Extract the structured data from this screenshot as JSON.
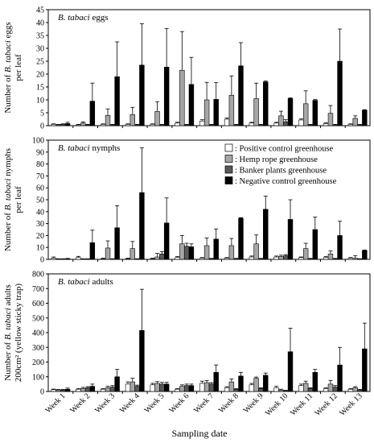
{
  "figure": {
    "xlabel": "Sampling date"
  },
  "legend": {
    "items": [
      {
        "label": ": Positive control greenhouse",
        "color": "#ffffff"
      },
      {
        "label": ": Hemp rope greenhouse",
        "color": "#a6a6a6"
      },
      {
        "label": ": Banker plants greenhouse",
        "color": "#595959"
      },
      {
        "label": ": Negative control greenhouse",
        "color": "#000000"
      }
    ]
  },
  "chart_data": [
    {
      "type": "bar",
      "title_italic": "B. tabaci",
      "title_rest": " eggs",
      "ylabel_line1_pre": "Number of ",
      "ylabel_line1_italic": "B. tabaci",
      "ylabel_line1_post": " eggs",
      "ylabel_line2": "per leaf",
      "ylim": [
        0,
        45
      ],
      "yticks": [
        0,
        5,
        10,
        15,
        20,
        25,
        30,
        35,
        40,
        45
      ],
      "categories": [
        "Week 1",
        "Week 2",
        "Week 3",
        "Week 4",
        "Week 5",
        "Week 6",
        "Week 7",
        "Week 8",
        "Week 9",
        "Week 10",
        "Week 11",
        "Week 12",
        "Week 13"
      ],
      "series": [
        {
          "name": "Positive control greenhouse",
          "color": "#ffffff",
          "values": [
            0.5,
            0.3,
            0.5,
            0.5,
            0.5,
            1.0,
            1.8,
            2.5,
            1.0,
            1.0,
            2.2,
            0.8,
            0.5
          ],
          "errors": [
            0.2,
            0.2,
            0.2,
            0.2,
            0.2,
            0.3,
            0.5,
            0.5,
            0.3,
            0.3,
            0.4,
            0.3,
            0.2
          ]
        },
        {
          "name": "Hemp rope greenhouse",
          "color": "#a6a6a6",
          "values": [
            0.3,
            1.0,
            4.0,
            4.3,
            5.5,
            21.5,
            10.0,
            11.8,
            10.5,
            3.8,
            8.5,
            4.8,
            2.8
          ],
          "errors": [
            0.2,
            0.5,
            2.5,
            2.8,
            3.8,
            15.0,
            6.8,
            7.5,
            6.0,
            1.8,
            5.0,
            3.0,
            1.0
          ]
        },
        {
          "name": "Banker plants greenhouse",
          "color": "#595959",
          "values": [
            0.5,
            0.3,
            0.3,
            0.3,
            0.3,
            0.3,
            0.3,
            0.3,
            0.3,
            1.5,
            0.3,
            0.3,
            0.3
          ],
          "errors": [
            0.2,
            0.2,
            0.2,
            0.2,
            0.2,
            0.2,
            0.2,
            0.2,
            0.2,
            0.8,
            0.2,
            0.2,
            0.2
          ]
        },
        {
          "name": "Negative control greenhouse",
          "color": "#000000",
          "values": [
            0.8,
            9.5,
            19.0,
            23.5,
            22.7,
            16.0,
            10.2,
            23.2,
            17.0,
            10.5,
            9.8,
            25.0,
            6.0
          ],
          "errors": [
            0.5,
            7.0,
            13.5,
            16.0,
            15.0,
            10.5,
            6.5,
            9.0,
            0.3,
            0.3,
            0.3,
            12.5,
            0.2
          ]
        }
      ]
    },
    {
      "type": "bar",
      "title_italic": "B. tabaci",
      "title_rest": " nymphs",
      "ylabel_line1_pre": "Number of ",
      "ylabel_line1_italic": "B. tabaci",
      "ylabel_line1_post": " nymphs",
      "ylabel_line2": "per leaf",
      "ylim": [
        0,
        100
      ],
      "yticks": [
        0,
        10,
        20,
        30,
        40,
        50,
        60,
        70,
        80,
        90,
        100
      ],
      "categories": [
        "Week 1",
        "Week 2",
        "Week 3",
        "Week 4",
        "Week 5",
        "Week 6",
        "Week 7",
        "Week 8",
        "Week 9",
        "Week 10",
        "Week 11",
        "Week 12",
        "Week 13"
      ],
      "series": [
        {
          "name": "Positive control greenhouse",
          "color": "#ffffff",
          "values": [
            1.0,
            1.5,
            0.5,
            0.5,
            0.5,
            1.5,
            1.0,
            1.0,
            2.0,
            2.0,
            1.5,
            1.5,
            1.0
          ],
          "errors": [
            1.0,
            1.0,
            0.5,
            0.5,
            0.5,
            0.8,
            0.5,
            0.5,
            0.8,
            0.8,
            0.5,
            0.8,
            0.5
          ]
        },
        {
          "name": "Hemp rope greenhouse",
          "color": "#a6a6a6",
          "values": [
            0.3,
            0.3,
            9.5,
            9.0,
            2.0,
            13.0,
            11.5,
            11.5,
            13.0,
            2.5,
            9.0,
            4.5,
            1.0
          ],
          "errors": [
            0.2,
            0.2,
            6.0,
            6.0,
            3.0,
            7.0,
            6.5,
            6.0,
            7.5,
            1.0,
            4.5,
            2.5,
            2.0
          ]
        },
        {
          "name": "Banker plants greenhouse",
          "color": "#595959",
          "values": [
            0.3,
            0.3,
            0.3,
            0.3,
            4.5,
            11.0,
            0.5,
            0.5,
            0.5,
            3.0,
            0.5,
            0.5,
            0.3
          ],
          "errors": [
            0.2,
            0.2,
            0.2,
            0.2,
            2.0,
            2.5,
            0.3,
            0.3,
            0.3,
            1.0,
            0.3,
            0.3,
            0.2
          ]
        },
        {
          "name": "Negative control greenhouse",
          "color": "#000000",
          "values": [
            0.5,
            14.0,
            26.5,
            56.0,
            30.5,
            10.5,
            17.0,
            34.5,
            42.0,
            33.5,
            25.0,
            20.0,
            7.5
          ],
          "errors": [
            0.3,
            10.5,
            18.5,
            37.5,
            21.0,
            2.5,
            8.5,
            0.5,
            11.0,
            16.5,
            10.5,
            12.0,
            0.3
          ]
        }
      ]
    },
    {
      "type": "bar",
      "title_italic": "B. tabaci",
      "title_rest": " adults",
      "ylabel_line1_pre": "Number of ",
      "ylabel_line1_italic": "B. tabaci",
      "ylabel_line1_post": " adults",
      "ylabel_line2": "200cm² (yellow sticky trap)",
      "ylim": [
        0,
        800
      ],
      "yticks": [
        0,
        100,
        200,
        300,
        400,
        500,
        600,
        700,
        800
      ],
      "categories": [
        "Week 1",
        "Week 2",
        "Week 3",
        "Week 4",
        "Week 5",
        "Week 6",
        "Week 7",
        "Week 8",
        "Week 9",
        "Week 10",
        "Week 11",
        "Week 12",
        "Week 13"
      ],
      "series": [
        {
          "name": "Positive control greenhouse",
          "color": "#ffffff",
          "values": [
            12,
            15,
            15,
            50,
            45,
            15,
            55,
            25,
            45,
            25,
            40,
            20,
            15
          ],
          "errors": [
            4,
            5,
            5,
            15,
            10,
            5,
            15,
            8,
            10,
            10,
            10,
            5,
            5
          ]
        },
        {
          "name": "Hemp rope greenhouse",
          "color": "#a6a6a6",
          "values": [
            10,
            20,
            25,
            65,
            55,
            35,
            60,
            65,
            90,
            10,
            55,
            50,
            25
          ],
          "errors": [
            4,
            8,
            10,
            25,
            12,
            10,
            15,
            20,
            8,
            5,
            15,
            25,
            8
          ]
        },
        {
          "name": "Banker plants greenhouse",
          "color": "#595959",
          "values": [
            10,
            25,
            30,
            35,
            50,
            40,
            50,
            15,
            20,
            5,
            20,
            30,
            10
          ],
          "errors": [
            4,
            8,
            10,
            8,
            12,
            10,
            10,
            5,
            5,
            3,
            5,
            10,
            4
          ]
        },
        {
          "name": "Negative control greenhouse",
          "color": "#000000",
          "values": [
            15,
            35,
            100,
            415,
            50,
            40,
            130,
            105,
            110,
            270,
            130,
            180,
            290
          ],
          "errors": [
            8,
            15,
            50,
            280,
            12,
            10,
            50,
            25,
            15,
            160,
            20,
            120,
            175
          ]
        }
      ]
    }
  ]
}
